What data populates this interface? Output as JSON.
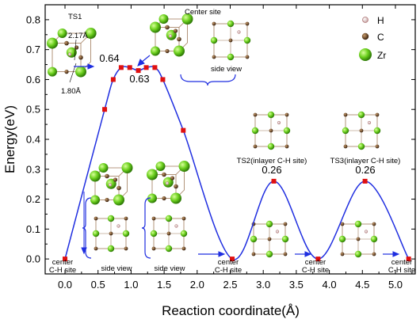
{
  "chart_data": {
    "type": "line",
    "title": "",
    "xlabel": "Reaction coordinate(Å)",
    "ylabel": "Energy(eV)",
    "xlim": [
      -0.3,
      5.3
    ],
    "ylim": [
      -0.05,
      0.85
    ],
    "xticks": [
      "0.0",
      "0.5",
      "1.0",
      "1.5",
      "2.0",
      "2.5",
      "3.0",
      "3.5",
      "4.0",
      "4.5",
      "5.0"
    ],
    "yticks": [
      "0.0",
      "0.1",
      "0.2",
      "0.3",
      "0.4",
      "0.5",
      "0.6",
      "0.7",
      "0.8"
    ],
    "grid": false,
    "line_color": "#1f2ee0",
    "marker_color": "#e01010",
    "series": [
      {
        "x": [
          0.0,
          0.6,
          0.73,
          0.85,
          0.98,
          1.11,
          1.23,
          1.36,
          1.48,
          1.79,
          2.53,
          3.16,
          3.83,
          4.54,
          5.2
        ],
        "y": [
          0.0,
          0.5,
          0.6,
          0.64,
          0.64,
          0.63,
          0.64,
          0.64,
          0.6,
          0.43,
          0.0,
          0.26,
          0.0,
          0.26,
          0.0
        ]
      }
    ],
    "annotations": {
      "ts1_peak": "0.64",
      "center_site_value": "0.63",
      "ts2_value": "0.26",
      "ts3_value": "0.26",
      "ts1_label": "TS1",
      "ts1_len1": "2.17Å",
      "ts1_len2": "1.80Å",
      "center_site": "Center site",
      "side_view_top": "side view",
      "ts2_label": "TS2(inlayer C-H site)",
      "ts3_label": "TS3(inlayer C-H site)",
      "side_view_left": "side view",
      "side_view_mid": "side view",
      "center_start": "center",
      "center_start2": "C-H site",
      "center_mid": "center",
      "center_mid2": "C-H site",
      "center_mid3": "center",
      "center_mid4": "C-H site",
      "center_end": "center",
      "center_end2": "C-H site"
    },
    "legend": {
      "position": "top-right",
      "entries": [
        {
          "label": "H",
          "color": "#ffffff"
        },
        {
          "label": "C",
          "color": "#6b4a2a"
        },
        {
          "label": "Zr",
          "color": "#66cc22"
        }
      ]
    }
  }
}
